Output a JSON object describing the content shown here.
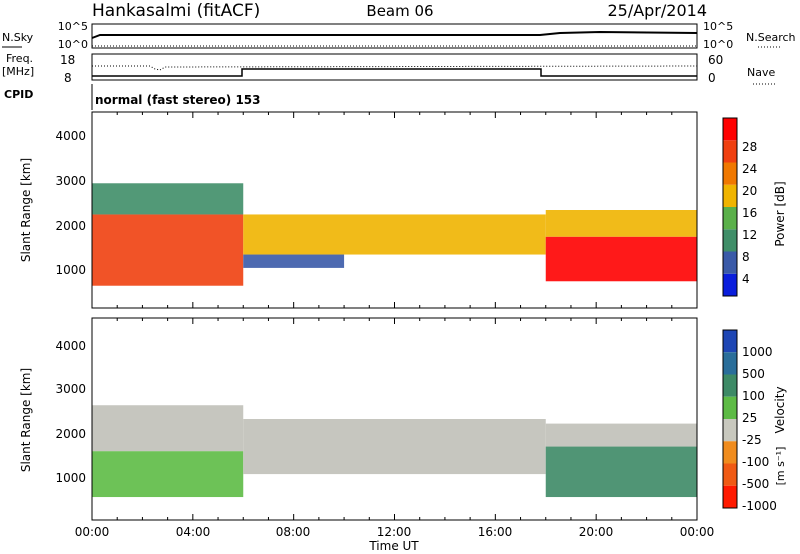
{
  "header": {
    "station": "Hankasalmi (fitACF)",
    "beam": "Beam 06",
    "date": "25/Apr/2014"
  },
  "top_panels": {
    "nsky_label": "N.Sky",
    "nsky_ticks": [
      "10^5",
      "10^0"
    ],
    "nsearch_label": "N.Search",
    "nsearch_ticks": [
      "10^5",
      "10^0"
    ],
    "freq_label": "Freq.",
    "freq_unit": "[MHz]",
    "freq_ticks": [
      "18",
      "8"
    ],
    "nave_label": "Nave",
    "nave_ticks": [
      "60",
      "0"
    ],
    "cpid_label": "CPID",
    "cpid_text": "normal (fast stereo) 153"
  },
  "colors": {
    "power_scale": [
      "#0a1edc",
      "#3a5aa8",
      "#3f8e68",
      "#5ab04a",
      "#f0b400",
      "#f07800",
      "#f04010",
      "#ff0000"
    ],
    "velocity_scale": [
      "#1e46b4",
      "#2a6e9a",
      "#3d8a66",
      "#5dbb45",
      "#c8c8be",
      "#f08c1e",
      "#f05a14",
      "#ff1a00"
    ],
    "ground_scatter": "#c0c0b8"
  },
  "chart_data": [
    {
      "type": "heatmap",
      "panel": "power",
      "ylabel": "Slant Range [km]",
      "yticks": [
        "4000",
        "3000",
        "2000",
        "1000"
      ],
      "ylim": [
        200,
        4600
      ],
      "xlim": [
        0,
        24
      ],
      "colorbar_label": "Power [dB]",
      "colorbar_ticks": [
        "28",
        "24",
        "20",
        "16",
        "12",
        "8",
        "4"
      ],
      "colorbar_range": [
        0,
        32
      ],
      "echo_bands": [
        {
          "t0": 0,
          "t1": 6,
          "r0": 700,
          "r1": 2300,
          "value": 24
        },
        {
          "t0": 0,
          "t1": 6,
          "r0": 2300,
          "r1": 3000,
          "value": 10
        },
        {
          "t0": 6,
          "t1": 18,
          "r0": 1400,
          "r1": 2300,
          "value": 16
        },
        {
          "t0": 6,
          "t1": 10,
          "r0": 1100,
          "r1": 1400,
          "value": 6
        },
        {
          "t0": 18,
          "t1": 24,
          "r0": 800,
          "r1": 1800,
          "value": 28
        },
        {
          "t0": 18,
          "t1": 24,
          "r0": 1800,
          "r1": 2400,
          "value": 16
        }
      ]
    },
    {
      "type": "heatmap",
      "panel": "velocity",
      "ylabel": "Slant Range [km]",
      "unit_label": "[m s⁻¹]",
      "yticks": [
        "4000",
        "3000",
        "2000",
        "1000"
      ],
      "ylim": [
        200,
        4600
      ],
      "xlim": [
        0,
        24
      ],
      "xlabel": "Time UT",
      "xticks": [
        "00:00",
        "04:00",
        "08:00",
        "12:00",
        "16:00",
        "20:00",
        "00:00"
      ],
      "colorbar_label": "Velocity",
      "colorbar_ticks": [
        "1000",
        "500",
        "100",
        "25",
        "-25",
        "-100",
        "-500",
        "-1000"
      ],
      "echo_bands": [
        {
          "t0": 0,
          "t1": 6,
          "r0": 700,
          "r1": 1700,
          "value": 100
        },
        {
          "t0": 0,
          "t1": 6,
          "r0": 1700,
          "r1": 2700,
          "value": 0
        },
        {
          "t0": 6,
          "t1": 18,
          "r0": 1200,
          "r1": 2400,
          "value": 0
        },
        {
          "t0": 18,
          "t1": 24,
          "r0": 700,
          "r1": 1800,
          "value": 300
        },
        {
          "t0": 18,
          "t1": 24,
          "r0": 1800,
          "r1": 2300,
          "value": 0
        }
      ]
    }
  ]
}
